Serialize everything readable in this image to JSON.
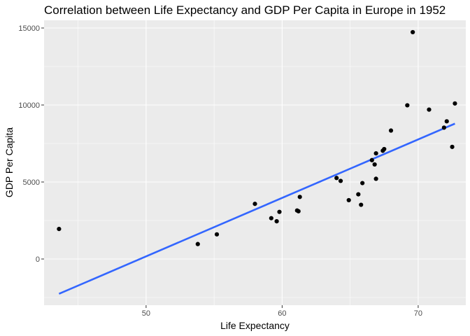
{
  "chart_data": {
    "type": "scatter",
    "title": "Correlation between Life Expectancy and GDP Per Capita in Europe in 1952",
    "xlabel": "Life Expectancy",
    "ylabel": "GDP Per Capita",
    "xlim": [
      42.5,
      73.5
    ],
    "ylim": [
      -3000,
      15500
    ],
    "xticks": [
      50,
      60,
      70
    ],
    "yticks": [
      0,
      5000,
      10000,
      15000
    ],
    "grid": true,
    "legend": "none",
    "point_color": "#000000",
    "line_color": "#3366FF",
    "panel_background": "#EBEBEB",
    "points": [
      {
        "x": 43.6,
        "y": 1950
      },
      {
        "x": 53.8,
        "y": 970
      },
      {
        "x": 55.2,
        "y": 1600
      },
      {
        "x": 58.0,
        "y": 3580
      },
      {
        "x": 59.2,
        "y": 2650
      },
      {
        "x": 59.6,
        "y": 2450
      },
      {
        "x": 59.8,
        "y": 3060
      },
      {
        "x": 61.1,
        "y": 3150
      },
      {
        "x": 61.2,
        "y": 3100
      },
      {
        "x": 61.3,
        "y": 4030
      },
      {
        "x": 64.0,
        "y": 5260
      },
      {
        "x": 64.3,
        "y": 5070
      },
      {
        "x": 64.9,
        "y": 3820
      },
      {
        "x": 65.6,
        "y": 4200
      },
      {
        "x": 65.8,
        "y": 3520
      },
      {
        "x": 65.9,
        "y": 4930
      },
      {
        "x": 66.6,
        "y": 6420
      },
      {
        "x": 66.8,
        "y": 6140
      },
      {
        "x": 66.9,
        "y": 6860
      },
      {
        "x": 66.9,
        "y": 5210
      },
      {
        "x": 67.4,
        "y": 7030
      },
      {
        "x": 67.5,
        "y": 7140
      },
      {
        "x": 68.0,
        "y": 8340
      },
      {
        "x": 69.2,
        "y": 9980
      },
      {
        "x": 69.6,
        "y": 14730
      },
      {
        "x": 70.8,
        "y": 9700
      },
      {
        "x": 71.9,
        "y": 8530
      },
      {
        "x": 72.1,
        "y": 8940
      },
      {
        "x": 72.5,
        "y": 7280
      },
      {
        "x": 72.7,
        "y": 10100
      }
    ],
    "trend_line": {
      "type": "linear",
      "x": [
        43.6,
        72.7
      ],
      "y": [
        -2260,
        8790
      ]
    }
  }
}
